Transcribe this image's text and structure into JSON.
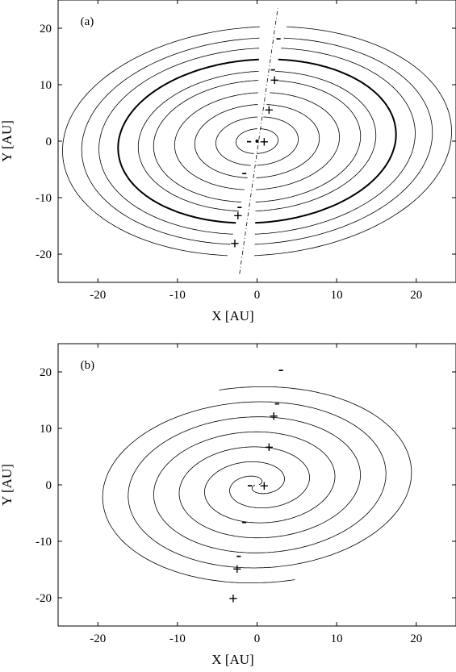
{
  "chart_data": [
    {
      "type": "line",
      "panel_label": "(a)",
      "xlabel": "X [AU]",
      "ylabel": "Y [AU]",
      "xlim": [
        -25,
        25
      ],
      "ylim": [
        -25,
        25
      ],
      "xticks": [
        -20,
        -10,
        0,
        10,
        20
      ],
      "yticks": [
        -20,
        -10,
        0,
        10,
        20
      ],
      "xtick_labels": [
        "-20",
        "-10",
        "0",
        "10",
        "20"
      ],
      "ytick_labels": [
        "-20",
        "-10",
        "0",
        "10",
        "20"
      ],
      "grid": false,
      "legend": "none",
      "dashed_line": {
        "x": [
          -2.2,
          2.6
        ],
        "y": [
          -23.5,
          23.5
        ]
      },
      "highlighted_curve": "thick closed loop, x range approx -15 to 15, y range approx -14.5 to 14.5",
      "annotations": [
        {
          "text": "-",
          "x": 2.7,
          "y": 18.3
        },
        {
          "text": "-",
          "x": 2.0,
          "y": 12.8
        },
        {
          "text": "+",
          "x": 2.2,
          "y": 10.7
        },
        {
          "text": "+",
          "x": 1.5,
          "y": 5.4
        },
        {
          "text": "-",
          "x": -1.0,
          "y": 0.1
        },
        {
          "text": "+",
          "x": 0.9,
          "y": -0.2
        },
        {
          "text": "-",
          "x": -1.6,
          "y": -5.6
        },
        {
          "text": "-",
          "x": -2.2,
          "y": -11.6
        },
        {
          "text": "+",
          "x": -2.4,
          "y": -13.3
        },
        {
          "text": "+",
          "x": -2.8,
          "y": -18.2
        }
      ]
    },
    {
      "type": "line",
      "panel_label": "(b)",
      "xlabel": "X [AU]",
      "ylabel": "Y [AU]",
      "xlim": [
        -25,
        25
      ],
      "ylim": [
        -25,
        25
      ],
      "xticks": [
        -20,
        -10,
        0,
        10,
        20
      ],
      "yticks": [
        -20,
        -10,
        0,
        10,
        20
      ],
      "xtick_labels": [
        "-20",
        "-10",
        "0",
        "10",
        "20"
      ],
      "ytick_labels": [
        "-20",
        "-10",
        "0",
        "10",
        "20"
      ],
      "grid": false,
      "legend": "none",
      "annotations": [
        {
          "text": "-",
          "x": 3.0,
          "y": 20.4
        },
        {
          "text": "-",
          "x": 2.5,
          "y": 14.5
        },
        {
          "text": "+",
          "x": 2.1,
          "y": 12.1
        },
        {
          "text": "+",
          "x": 1.5,
          "y": 6.6
        },
        {
          "text": "-",
          "x": -0.9,
          "y": 0.0
        },
        {
          "text": "+",
          "x": 0.9,
          "y": -0.3
        },
        {
          "text": "-",
          "x": -1.6,
          "y": -6.5
        },
        {
          "text": "-",
          "x": -2.3,
          "y": -12.5
        },
        {
          "text": "+",
          "x": -2.5,
          "y": -15.0
        },
        {
          "text": "+",
          "x": -3.0,
          "y": -20.2
        }
      ]
    }
  ]
}
